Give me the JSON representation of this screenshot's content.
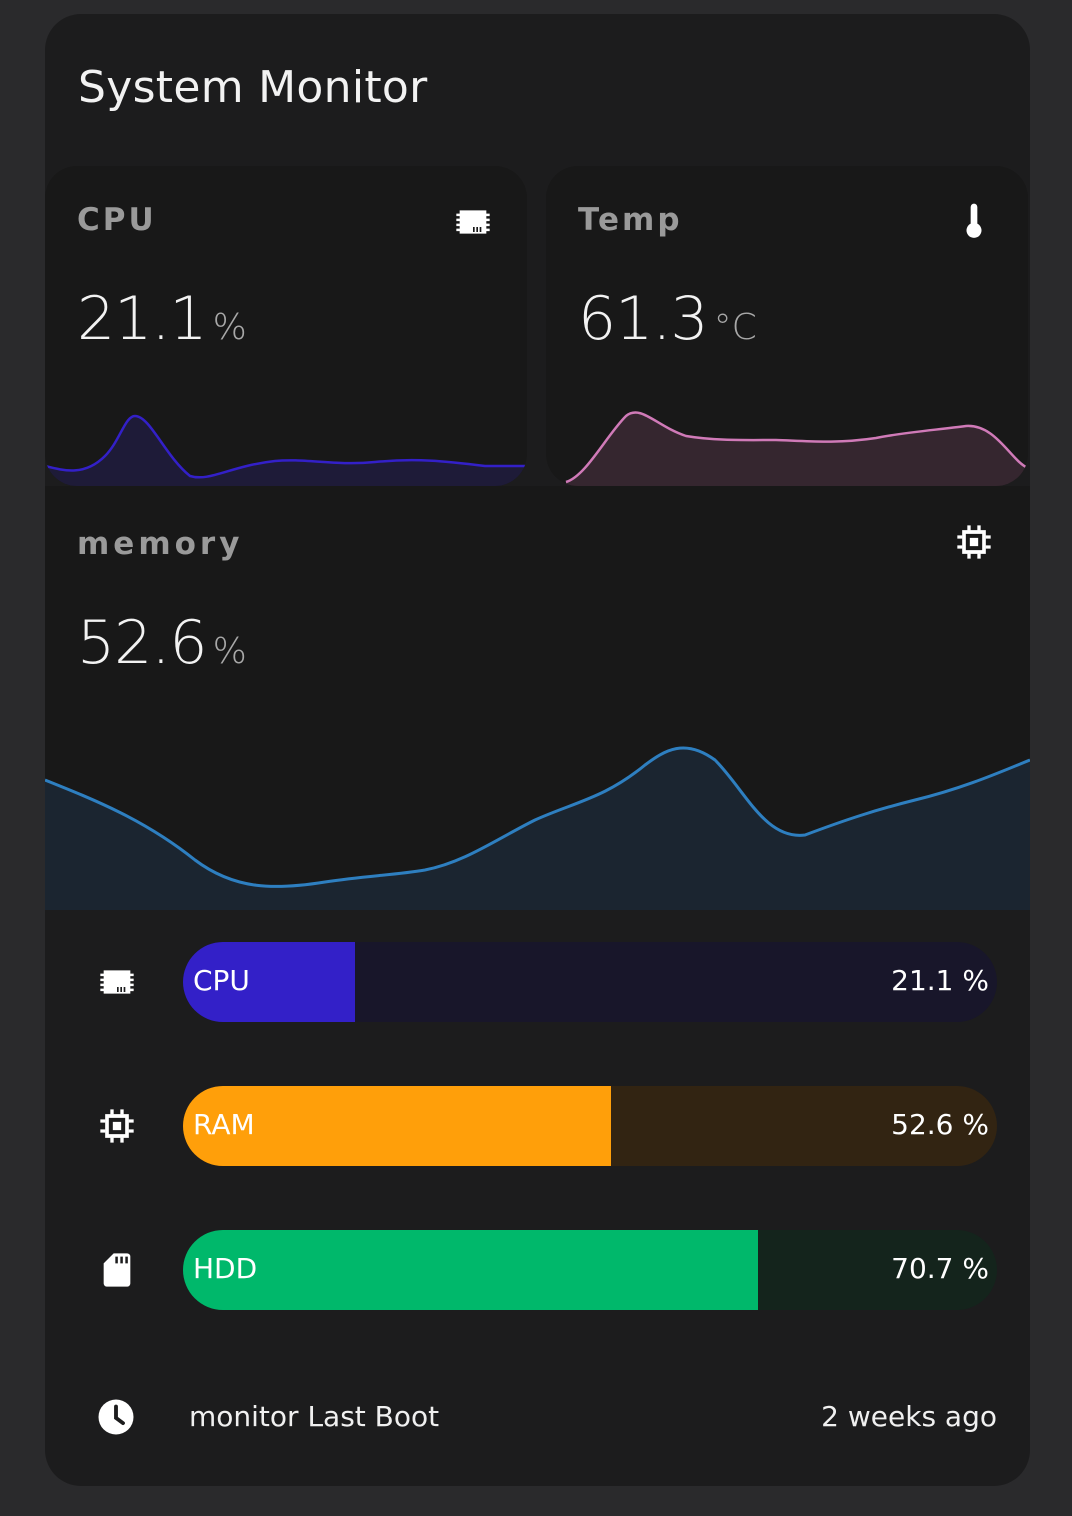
{
  "title": "System Monitor",
  "cpu_card": {
    "label": "CPU",
    "value": "21.1",
    "unit": "%",
    "icon": "chip-icon",
    "color": "#3320c8"
  },
  "temp_card": {
    "label": "Temp",
    "value": "61.3",
    "unit": "°C",
    "icon": "thermometer-icon",
    "color": "#d07ab8"
  },
  "memory_card": {
    "label": "memory",
    "value": "52.6",
    "unit": "%",
    "icon": "memory-chip-icon",
    "color": "#2e7fc0"
  },
  "bars": [
    {
      "label": "CPU",
      "value": "21.1 %",
      "fraction": 0.211,
      "fill": "#3320c8",
      "track": "#18162a",
      "icon": "chip-icon"
    },
    {
      "label": "RAM",
      "value": "52.6 %",
      "fraction": 0.526,
      "fill": "#ff9f0a",
      "track": "#322412",
      "icon": "memory-chip-icon"
    },
    {
      "label": "HDD",
      "value": "70.7 %",
      "fraction": 0.707,
      "fill": "#00b86b",
      "track": "#14241c",
      "icon": "sd-card-icon"
    }
  ],
  "last_boot": {
    "label": "monitor Last Boot",
    "value": "2 weeks ago",
    "icon": "clock-icon"
  }
}
